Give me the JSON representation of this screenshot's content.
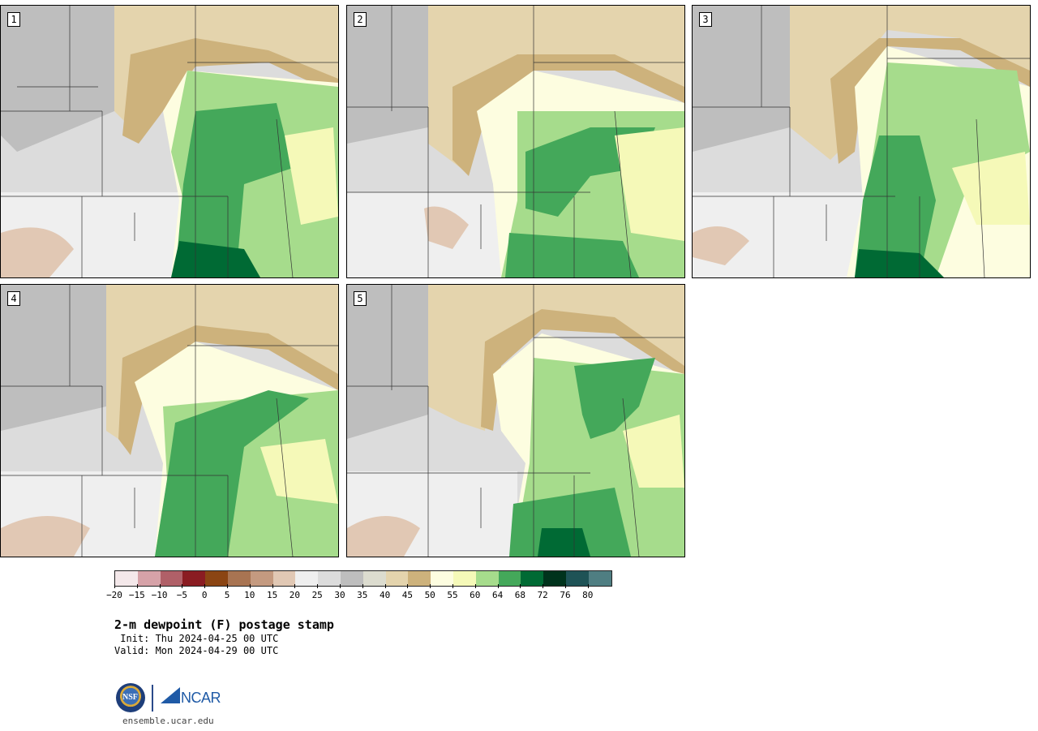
{
  "panels": [
    {
      "label": "1"
    },
    {
      "label": "2"
    },
    {
      "label": "3"
    },
    {
      "label": "4"
    },
    {
      "label": "5"
    }
  ],
  "colorbar": {
    "colors": [
      "#f4e8ea",
      "#d6a2a8",
      "#b06068",
      "#8a1c22",
      "#8b4513",
      "#a87452",
      "#c49a80",
      "#e1c8b4",
      "#efefef",
      "#dcdcdc",
      "#bebebe",
      "#dcdccf",
      "#e4d4ad",
      "#cdb27c",
      "#fdfde0",
      "#f5f9b8",
      "#a6dc8c",
      "#44a85a",
      "#006a34",
      "#00331c",
      "#1e5356",
      "#4f7e82"
    ],
    "tick_labels": [
      "−20",
      "−15",
      "−10",
      "−5",
      "0",
      "5",
      "10",
      "15",
      "20",
      "25",
      "30",
      "35",
      "40",
      "45",
      "50",
      "55",
      "60",
      "64",
      "68",
      "72",
      "76",
      "80"
    ]
  },
  "title": "2-m dewpoint (F) postage stamp",
  "init": " Init: Thu 2024-04-25 00 UTC",
  "valid": "Valid: Mon 2024-04-29 00 UTC",
  "logos": {
    "nsf": "NSF",
    "ncar": "NCAR"
  },
  "website": "ensemble.ucar.edu"
}
